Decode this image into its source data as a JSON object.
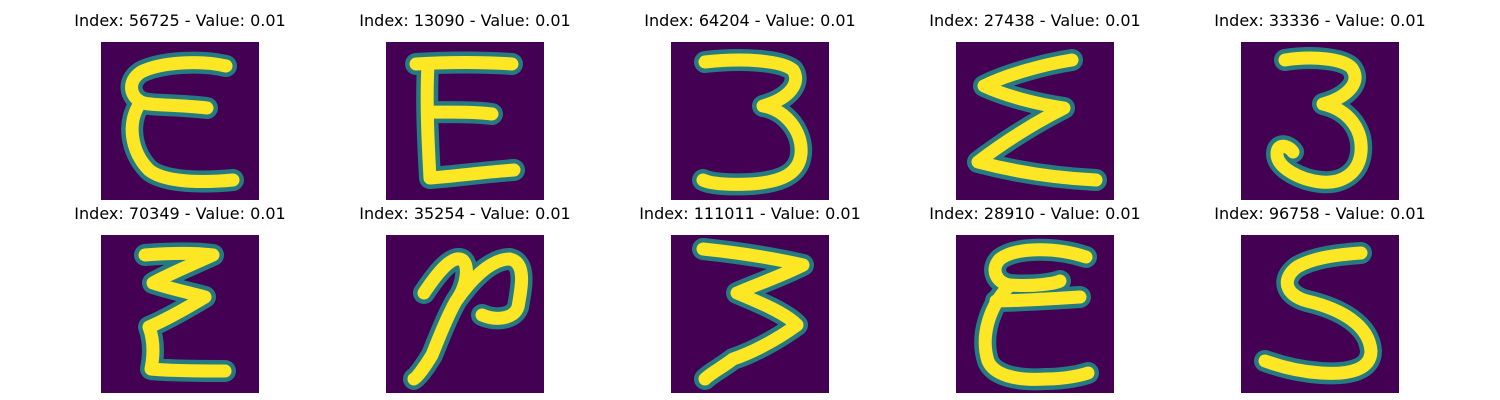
{
  "colors": {
    "background": "#440154",
    "stroke": "#fde725",
    "halo": "#21918c"
  },
  "panels": [
    {
      "title": "Index: 56725 - Value: 0.01",
      "glyph": "epsilon"
    },
    {
      "title": "Index: 13090 - Value: 0.01",
      "glyph": "epsilon"
    },
    {
      "title": "Index: 64204 - Value: 0.01",
      "glyph": "three"
    },
    {
      "title": "Index: 27438 - Value: 0.01",
      "glyph": "sigma"
    },
    {
      "title": "Index: 33336 - Value: 0.01",
      "glyph": "three"
    },
    {
      "title": "Index: 70349 - Value: 0.01",
      "glyph": "sigma"
    },
    {
      "title": "Index: 35254 - Value: 0.01",
      "glyph": "two"
    },
    {
      "title": "Index: 111011 - Value: 0.01",
      "glyph": "three"
    },
    {
      "title": "Index: 28910 - Value: 0.01",
      "glyph": "epsilon"
    },
    {
      "title": "Index: 96758 - Value: 0.01",
      "glyph": "five"
    }
  ]
}
